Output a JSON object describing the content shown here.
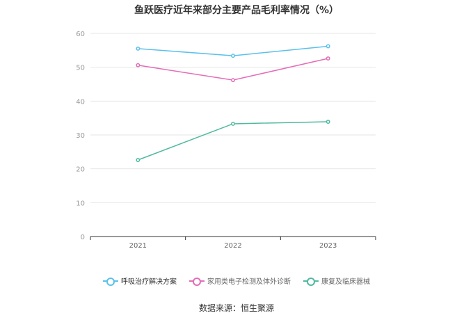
{
  "chart_data": {
    "type": "line",
    "title": "鱼跃医疗近年来部分主要产品毛利率情况（%）",
    "categories": [
      "2021",
      "2022",
      "2023"
    ],
    "ylim": [
      0,
      60
    ],
    "yticks": [
      0,
      10,
      20,
      30,
      40,
      50,
      60
    ],
    "grid": true,
    "legend_position": "bottom",
    "series": [
      {
        "name": "呼吸治疗解决方案",
        "color": "#5bc0eb",
        "values": [
          55.5,
          53.4,
          56.2
        ]
      },
      {
        "name": "家用类电子检测及体外诊断",
        "color": "#e46cb6",
        "values": [
          50.6,
          46.2,
          52.6
        ]
      },
      {
        "name": "康复及临床器械",
        "color": "#4fb99f",
        "values": [
          22.6,
          33.3,
          33.9
        ]
      }
    ],
    "source": "数据来源：恒生聚源"
  }
}
